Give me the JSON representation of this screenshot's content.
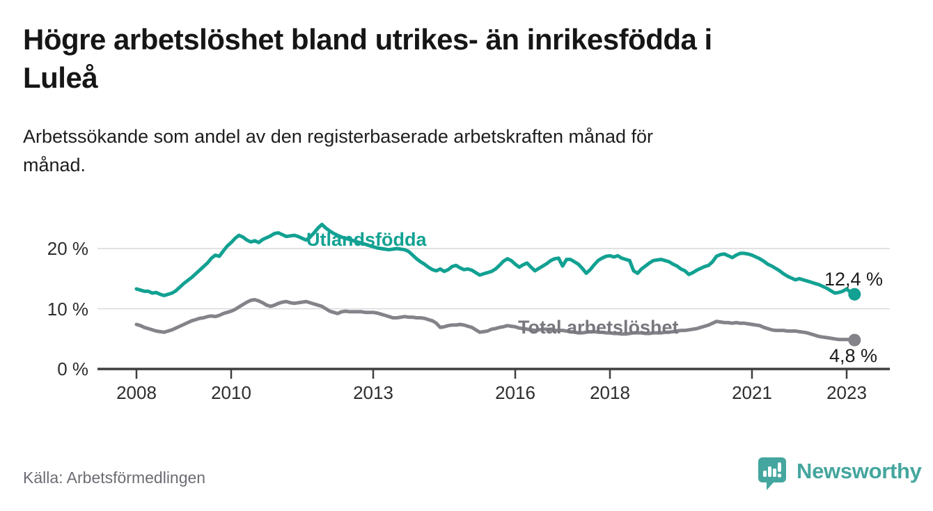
{
  "title": "Högre arbetslöshet bland utrikes- än inrikesfödda i\nLuleå",
  "subtitle": "Arbetssökande som andel av den registerbaserade arbetskraften månad för\nmånad.",
  "source": "Källa: Arbetsförmedlingen",
  "logo": {
    "text": "Newsworthy",
    "icon": "speech-bubble-bar-chart-icon",
    "color": "#44a69e"
  },
  "colors": {
    "teal_series": "#12a192",
    "gray_series": "#838389",
    "gray_label": "#77777e",
    "grid": "#d9d9d9",
    "axis": "#3f3f3f",
    "value_label": "#1b1b1b"
  },
  "chart_data": {
    "type": "line",
    "title": "Högre arbetslöshet bland utrikes- än inrikesfödda i Luleå",
    "subtitle": "Arbetssökande som andel av den registerbaserade arbetskraften månad för månad.",
    "x_start": {
      "year": 2008,
      "month": 1
    },
    "x_end": {
      "year": 2023,
      "month": 3
    },
    "x_ticks": [
      {
        "year": 2008,
        "label": "2008"
      },
      {
        "year": 2010,
        "label": "2010"
      },
      {
        "year": 2013,
        "label": "2013"
      },
      {
        "year": 2016,
        "label": "2016"
      },
      {
        "year": 2018,
        "label": "2018"
      },
      {
        "year": 2021,
        "label": "2021"
      },
      {
        "year": 2023,
        "label": "2023"
      }
    ],
    "y_ticks": [
      {
        "value": 0,
        "label": "0 %"
      },
      {
        "value": 10,
        "label": "10 %"
      },
      {
        "value": 20,
        "label": "20 %"
      }
    ],
    "ylim": [
      0,
      26
    ],
    "grid": true,
    "legend_position": "inline-labels",
    "series": [
      {
        "name": "Utlandsfödda",
        "color": "#12a192",
        "end_label": "12,4 %",
        "end_value": 12.4,
        "values": [
          13.3,
          13.1,
          12.9,
          12.9,
          12.6,
          12.7,
          12.4,
          12.2,
          12.4,
          12.6,
          13.0,
          13.6,
          14.2,
          14.7,
          15.2,
          15.8,
          16.4,
          17.0,
          17.6,
          18.4,
          18.9,
          18.7,
          19.6,
          20.4,
          21.0,
          21.7,
          22.2,
          21.9,
          21.4,
          21.1,
          21.3,
          21.0,
          21.5,
          21.8,
          22.1,
          22.5,
          22.6,
          22.3,
          22.0,
          22.1,
          22.2,
          22.0,
          21.7,
          21.4,
          21.9,
          22.6,
          23.4,
          24.0,
          23.4,
          22.9,
          22.5,
          22.2,
          21.9,
          21.7,
          21.5,
          21.3,
          21.1,
          20.9,
          20.7,
          20.5,
          20.3,
          20.1,
          20.0,
          19.9,
          19.8,
          19.9,
          20.0,
          19.9,
          19.8,
          19.5,
          18.9,
          18.3,
          17.8,
          17.4,
          16.9,
          16.5,
          16.3,
          16.6,
          16.2,
          16.5,
          17.0,
          17.2,
          16.8,
          16.5,
          16.6,
          16.4,
          16.0,
          15.6,
          15.8,
          16.0,
          16.2,
          16.6,
          17.2,
          17.9,
          18.3,
          18.0,
          17.4,
          16.9,
          17.3,
          17.6,
          16.9,
          16.3,
          16.7,
          17.1,
          17.5,
          18.0,
          18.3,
          18.4,
          17.1,
          18.2,
          18.2,
          17.8,
          17.4,
          16.7,
          15.9,
          16.5,
          17.3,
          18.0,
          18.4,
          18.7,
          18.8,
          18.6,
          18.8,
          18.4,
          18.2,
          18.0,
          16.3,
          15.9,
          16.6,
          17.1,
          17.6,
          18.0,
          18.1,
          18.2,
          18.0,
          17.8,
          17.4,
          17.1,
          16.6,
          16.3,
          15.7,
          16.0,
          16.4,
          16.7,
          17.0,
          17.2,
          17.8,
          18.7,
          19.0,
          19.1,
          18.8,
          18.5,
          18.9,
          19.2,
          19.2,
          19.1,
          18.9,
          18.6,
          18.3,
          17.9,
          17.4,
          17.1,
          16.7,
          16.3,
          15.8,
          15.4,
          15.1,
          14.8,
          15.0,
          14.8,
          14.6,
          14.4,
          14.2,
          14.0,
          13.7,
          13.4,
          13.0,
          12.6,
          12.7,
          12.9,
          13.3,
          12.7,
          12.4
        ]
      },
      {
        "name": "Total arbetslöshet",
        "color": "#838389",
        "end_label": "4,8 %",
        "end_value": 4.8,
        "values": [
          7.4,
          7.2,
          6.9,
          6.7,
          6.5,
          6.3,
          6.2,
          6.1,
          6.3,
          6.5,
          6.8,
          7.1,
          7.4,
          7.7,
          8.0,
          8.2,
          8.4,
          8.5,
          8.7,
          8.8,
          8.7,
          8.9,
          9.2,
          9.4,
          9.6,
          9.9,
          10.3,
          10.7,
          11.1,
          11.4,
          11.5,
          11.3,
          11.0,
          10.6,
          10.4,
          10.6,
          10.9,
          11.1,
          11.2,
          11.0,
          10.9,
          11.0,
          11.1,
          11.2,
          11.0,
          10.8,
          10.6,
          10.4,
          10.0,
          9.6,
          9.4,
          9.2,
          9.5,
          9.6,
          9.5,
          9.5,
          9.5,
          9.5,
          9.4,
          9.4,
          9.4,
          9.3,
          9.1,
          8.9,
          8.7,
          8.5,
          8.5,
          8.6,
          8.7,
          8.6,
          8.6,
          8.5,
          8.5,
          8.4,
          8.2,
          8.0,
          7.6,
          6.9,
          7.0,
          7.2,
          7.3,
          7.3,
          7.4,
          7.3,
          7.1,
          6.9,
          6.5,
          6.1,
          6.2,
          6.3,
          6.6,
          6.7,
          6.9,
          7.0,
          7.2,
          7.1,
          7.0,
          6.8,
          6.7,
          6.6,
          6.5,
          6.4,
          6.5,
          6.6,
          6.6,
          6.5,
          6.4,
          6.4,
          6.4,
          6.3,
          6.2,
          6.1,
          6.0,
          6.0,
          6.1,
          6.2,
          6.2,
          6.1,
          6.1,
          6.0,
          6.0,
          5.9,
          5.9,
          5.8,
          5.8,
          5.9,
          6.0,
          6.0,
          6.0,
          5.9,
          5.9,
          6.0,
          6.0,
          6.0,
          6.1,
          6.1,
          6.2,
          6.3,
          6.4,
          6.4,
          6.5,
          6.6,
          6.7,
          6.9,
          7.1,
          7.3,
          7.6,
          7.9,
          7.8,
          7.7,
          7.7,
          7.6,
          7.7,
          7.6,
          7.6,
          7.5,
          7.4,
          7.3,
          7.2,
          6.9,
          6.7,
          6.5,
          6.4,
          6.4,
          6.4,
          6.3,
          6.3,
          6.3,
          6.2,
          6.1,
          6.0,
          5.8,
          5.6,
          5.4,
          5.3,
          5.2,
          5.1,
          5.0,
          4.9,
          4.9,
          4.9,
          4.85,
          4.8
        ]
      }
    ]
  }
}
